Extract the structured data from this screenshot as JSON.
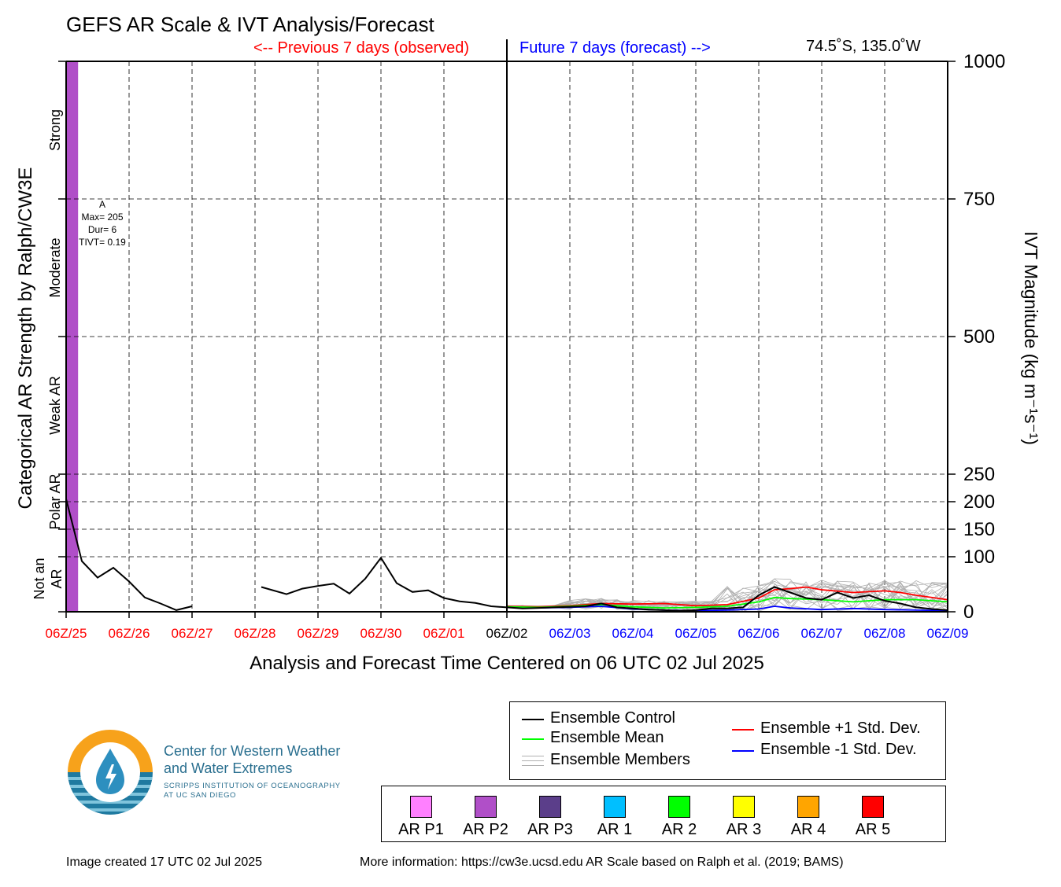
{
  "header": {
    "title": "GEFS AR Scale & IVT Analysis/Forecast",
    "previous_label": "<-- Previous 7 days (observed)",
    "future_label": "Future 7 days (forecast) -->",
    "location": "74.5˚S, 135.0˚W"
  },
  "chart_data": {
    "type": "line",
    "title": "GEFS AR Scale & IVT Analysis/Forecast",
    "xlabel": "Analysis and Forecast Time Centered on 06 UTC 02 Jul 2025",
    "ylabel_left": "Categorical AR Strength by Ralph/CW3E",
    "ylabel_right": "IVT Magnitude (kg m⁻¹s⁻¹)",
    "ylim": [
      0,
      1000
    ],
    "y_ticks": [
      0,
      100,
      150,
      200,
      250,
      500,
      750,
      1000
    ],
    "x_ticks": [
      {
        "label": "06Z/25",
        "day": 0,
        "color": "#ff0000"
      },
      {
        "label": "06Z/26",
        "day": 1,
        "color": "#ff0000"
      },
      {
        "label": "06Z/27",
        "day": 2,
        "color": "#ff0000"
      },
      {
        "label": "06Z/28",
        "day": 3,
        "color": "#ff0000"
      },
      {
        "label": "06Z/29",
        "day": 4,
        "color": "#ff0000"
      },
      {
        "label": "06Z/30",
        "day": 5,
        "color": "#ff0000"
      },
      {
        "label": "06Z/01",
        "day": 6,
        "color": "#ff0000"
      },
      {
        "label": "06Z/02",
        "day": 7,
        "color": "#000000"
      },
      {
        "label": "06Z/03",
        "day": 8,
        "color": "#0000ff"
      },
      {
        "label": "06Z/04",
        "day": 9,
        "color": "#0000ff"
      },
      {
        "label": "06Z/05",
        "day": 10,
        "color": "#0000ff"
      },
      {
        "label": "06Z/06",
        "day": 11,
        "color": "#0000ff"
      },
      {
        "label": "06Z/07",
        "day": 12,
        "color": "#0000ff"
      },
      {
        "label": "06Z/08",
        "day": 13,
        "color": "#0000ff"
      },
      {
        "label": "06Z/09",
        "day": 14,
        "color": "#0000ff"
      }
    ],
    "categories_left": [
      {
        "label": "Strong",
        "range": [
          750,
          1000
        ]
      },
      {
        "label": "Moderate",
        "range": [
          500,
          750
        ]
      },
      {
        "label": "Weak AR",
        "range": [
          250,
          500
        ]
      },
      {
        "label": "Polar AR",
        "range": [
          150,
          250
        ]
      },
      {
        "label": "Not an AR",
        "range": [
          0,
          150
        ]
      }
    ],
    "ar_bar": {
      "category": "AR P2",
      "color": "#b04fc8",
      "start_day": 0,
      "end_day": 0.19
    },
    "ar_annotation": {
      "letter": "A",
      "max": "Max= 205",
      "dur": "Dur= 6",
      "tivt": "TIVT= 0.19"
    },
    "series": [
      {
        "name": "Ensemble Control",
        "color": "#000000",
        "segments": [
          [
            [
              0,
              205
            ],
            [
              0.25,
              92
            ],
            [
              0.5,
              62
            ],
            [
              0.75,
              80
            ],
            [
              1,
              55
            ],
            [
              1.25,
              26
            ],
            [
              1.5,
              15
            ],
            [
              1.75,
              3
            ],
            [
              2,
              10
            ]
          ],
          [
            [
              3.1,
              45
            ],
            [
              3.5,
              32
            ],
            [
              3.75,
              42
            ],
            [
              4,
              47
            ],
            [
              4.25,
              51
            ],
            [
              4.5,
              33
            ],
            [
              4.75,
              60
            ],
            [
              5,
              98
            ],
            [
              5.25,
              52
            ],
            [
              5.5,
              36
            ],
            [
              5.75,
              39
            ],
            [
              6,
              25
            ],
            [
              6.25,
              19
            ],
            [
              6.5,
              16
            ],
            [
              6.75,
              10
            ],
            [
              7,
              8
            ],
            [
              7.25,
              6
            ],
            [
              7.5,
              7
            ],
            [
              7.75,
              8
            ],
            [
              8,
              9
            ],
            [
              8.25,
              10
            ],
            [
              8.5,
              15
            ],
            [
              8.75,
              8
            ],
            [
              9,
              6
            ],
            [
              9.25,
              4
            ],
            [
              9.5,
              3
            ],
            [
              9.75,
              2
            ],
            [
              10,
              3
            ],
            [
              10.25,
              6
            ],
            [
              10.5,
              6
            ],
            [
              10.75,
              8
            ],
            [
              11,
              30
            ],
            [
              11.25,
              45
            ],
            [
              11.5,
              35
            ],
            [
              11.75,
              25
            ],
            [
              12,
              22
            ],
            [
              12.25,
              35
            ],
            [
              12.5,
              25
            ],
            [
              12.75,
              30
            ],
            [
              13,
              20
            ],
            [
              13.25,
              15
            ],
            [
              13.5,
              8
            ],
            [
              13.75,
              5
            ],
            [
              14,
              3
            ]
          ]
        ]
      },
      {
        "name": "Ensemble Mean",
        "color": "#00ff00",
        "segments": [
          [
            [
              7,
              9
            ],
            [
              7.5,
              8
            ],
            [
              8,
              10
            ],
            [
              8.5,
              13
            ],
            [
              9,
              9
            ],
            [
              9.5,
              7
            ],
            [
              10,
              8
            ],
            [
              10.5,
              10
            ],
            [
              11,
              18
            ],
            [
              11.25,
              26
            ],
            [
              11.5,
              24
            ],
            [
              12,
              22
            ],
            [
              12.5,
              18
            ],
            [
              13,
              22
            ],
            [
              13.5,
              22
            ],
            [
              14,
              18
            ]
          ]
        ]
      },
      {
        "name": "Ensemble +1 Std. Dev.",
        "color": "#ff0000",
        "segments": [
          [
            [
              7,
              10
            ],
            [
              7.5,
              9
            ],
            [
              8,
              11
            ],
            [
              8.5,
              15
            ],
            [
              9,
              14
            ],
            [
              9.5,
              15
            ],
            [
              10,
              11
            ],
            [
              10.5,
              13
            ],
            [
              11,
              25
            ],
            [
              11.25,
              40
            ],
            [
              11.5,
              42
            ],
            [
              11.75,
              45
            ],
            [
              12,
              40
            ],
            [
              12.5,
              35
            ],
            [
              13,
              38
            ],
            [
              13.25,
              35
            ],
            [
              13.5,
              30
            ],
            [
              14,
              22
            ]
          ]
        ]
      },
      {
        "name": "Ensemble -1 Std. Dev.",
        "color": "#0000ff",
        "segments": [
          [
            [
              7,
              8
            ],
            [
              7.5,
              7
            ],
            [
              8,
              8
            ],
            [
              8.5,
              10
            ],
            [
              9,
              5
            ],
            [
              9.5,
              3
            ],
            [
              10,
              2
            ],
            [
              10.5,
              3
            ],
            [
              11,
              5
            ],
            [
              11.25,
              10
            ],
            [
              11.5,
              7
            ],
            [
              12,
              4
            ],
            [
              12.5,
              6
            ],
            [
              13,
              4
            ],
            [
              13.5,
              3
            ],
            [
              14,
              2
            ]
          ]
        ]
      }
    ],
    "members_label": "Ensemble Members",
    "members_color": "#b0b0b0"
  },
  "legend": {
    "control": "Ensemble Control",
    "mean": "Ensemble Mean",
    "members": "Ensemble Members",
    "plus": "Ensemble +1 Std. Dev.",
    "minus": "Ensemble -1 Std. Dev."
  },
  "scale": [
    {
      "label": "AR P1",
      "color": "#ff80ff"
    },
    {
      "label": "AR P2",
      "color": "#b04fc8"
    },
    {
      "label": "AR P3",
      "color": "#5b3e8a"
    },
    {
      "label": "AR 1",
      "color": "#00bfff"
    },
    {
      "label": "AR 2",
      "color": "#00ff00"
    },
    {
      "label": "AR 3",
      "color": "#ffff00"
    },
    {
      "label": "AR 4",
      "color": "#ffa500"
    },
    {
      "label": "AR 5",
      "color": "#ff0000"
    }
  ],
  "logo": {
    "line1": "Center for Western Weather",
    "line2": "and Water Extremes",
    "sub1": "SCRIPPS INSTITUTION OF OCEANOGRAPHY",
    "sub2": "AT UC SAN DIEGO"
  },
  "footer": {
    "created": "Image created 17 UTC 02 Jul 2025",
    "info": "More information: https://cw3e.ucsd.edu AR Scale based on Ralph et al. (2019; BAMS)"
  }
}
